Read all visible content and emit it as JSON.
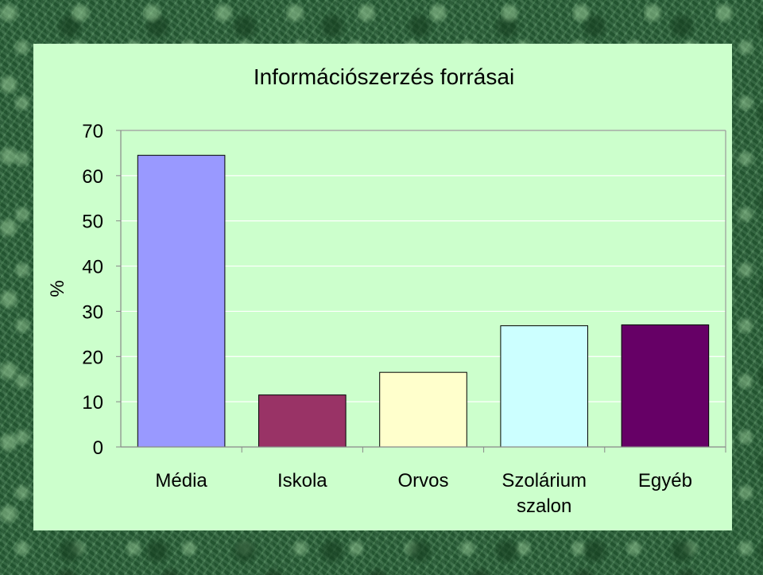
{
  "chart_data": {
    "type": "bar",
    "title": "Információszerzés forrásai",
    "ylabel": "%",
    "xlabel": "",
    "ylim": [
      0,
      70
    ],
    "yticks": [
      "0",
      "10",
      "20",
      "30",
      "40",
      "50",
      "60",
      "70"
    ],
    "categories": [
      "Média",
      "Iskola",
      "Orvos",
      "Szolárium szalon",
      "Egyéb"
    ],
    "category_label_lines": [
      [
        "Média"
      ],
      [
        "Iskola"
      ],
      [
        "Orvos"
      ],
      [
        "Szolárium",
        "szalon"
      ],
      [
        "Egyéb"
      ]
    ],
    "values": [
      64.5,
      11.5,
      16.5,
      26.8,
      27
    ],
    "colors": [
      "#9999ff",
      "#993366",
      "#ffffcc",
      "#ccffff",
      "#660066"
    ],
    "grid": true,
    "legend": "none"
  }
}
